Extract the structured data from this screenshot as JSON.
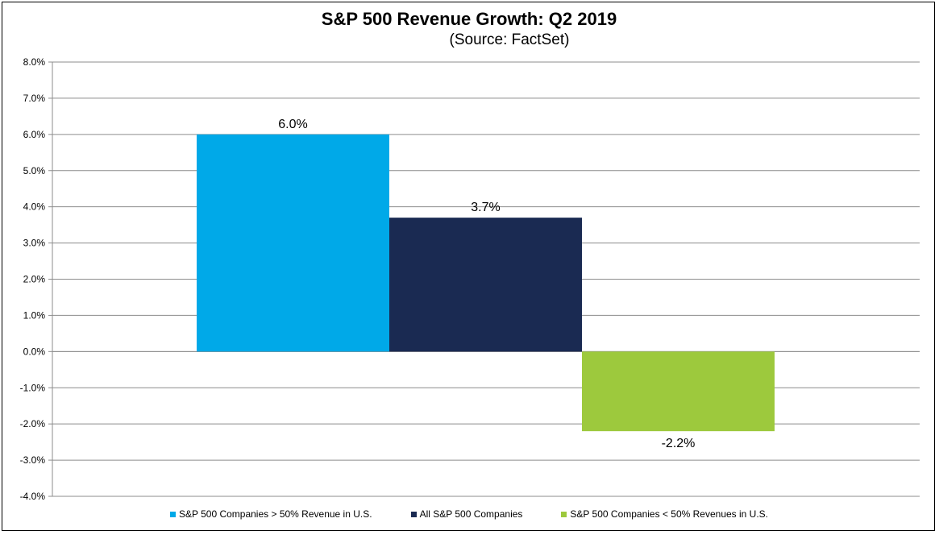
{
  "chart_data": {
    "type": "bar",
    "title": "S&P 500 Revenue Growth: Q2 2019",
    "subtitle": "(Source: FactSet)",
    "xlabel": "",
    "ylabel": "",
    "ylim": [
      -4.0,
      8.0
    ],
    "ytick_step": 1.0,
    "yticks": [
      "8.0%",
      "7.0%",
      "6.0%",
      "5.0%",
      "4.0%",
      "3.0%",
      "2.0%",
      "1.0%",
      "0.0%",
      "-1.0%",
      "-2.0%",
      "-3.0%",
      "-4.0%"
    ],
    "grid": true,
    "legend_position": "bottom",
    "series": [
      {
        "name": "S&P 500 Companies > 50% Revenue in U.S.",
        "value": 6.0,
        "label": "6.0%",
        "color": "#00a9e8"
      },
      {
        "name": "All S&P 500 Companies",
        "value": 3.7,
        "label": "3.7%",
        "color": "#1a2a52"
      },
      {
        "name": "S&P 500 Companies < 50% Revenues in U.S.",
        "value": -2.2,
        "label": "-2.2%",
        "color": "#9dc93d"
      }
    ]
  }
}
